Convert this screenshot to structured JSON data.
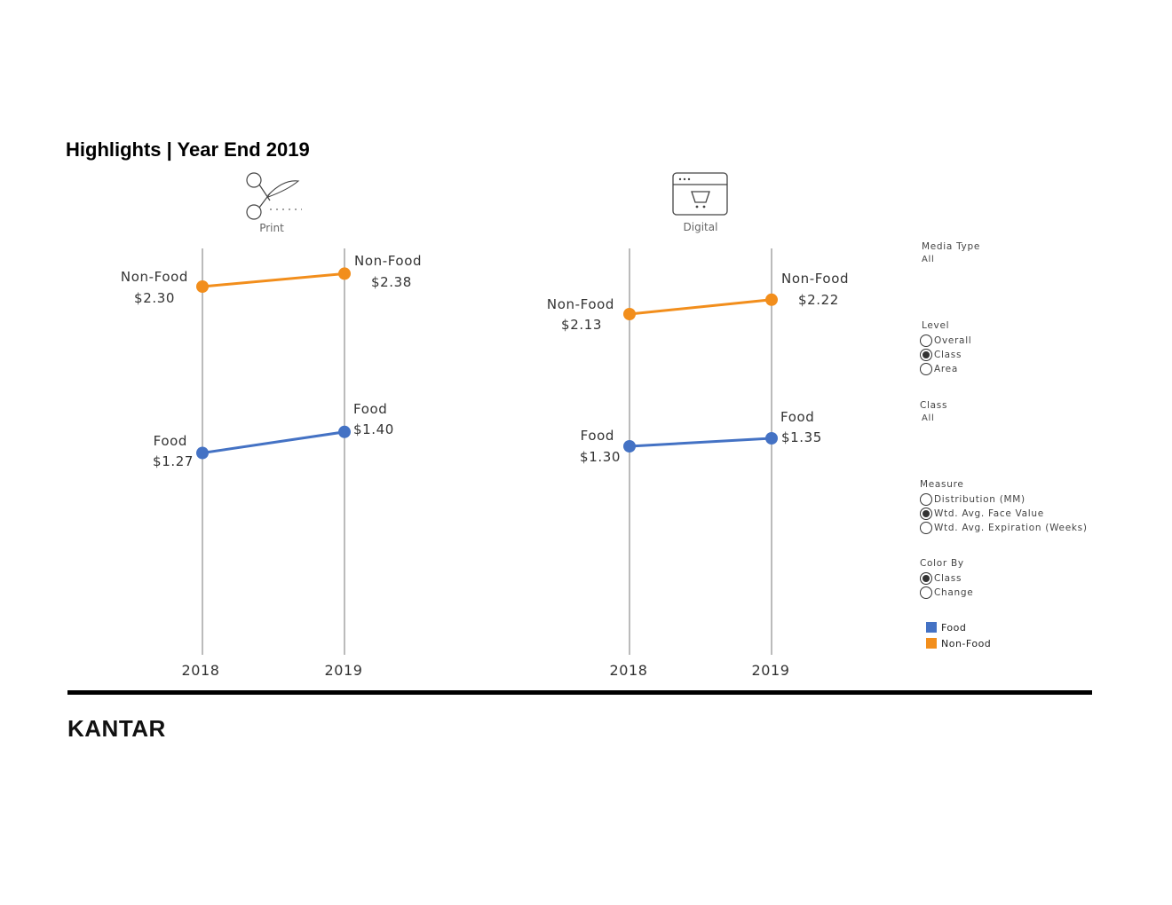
{
  "header": {
    "title": "Highlights | Year End 2019"
  },
  "media": {
    "print": {
      "label": "Print",
      "icon": "scissors-coupon-icon"
    },
    "digital": {
      "label": "Digital",
      "icon": "browser-cart-icon"
    }
  },
  "colors": {
    "food": "#4472C4",
    "non_food": "#F28E1C",
    "axis": "#bbbbbb"
  },
  "chart_data": [
    {
      "type": "line",
      "x": [
        "2018",
        "2019"
      ],
      "series": [
        {
          "name": "Non-Food",
          "values": [
            2.3,
            2.38
          ],
          "labels": [
            "$2.30",
            "$2.38"
          ]
        },
        {
          "name": "Food",
          "values": [
            1.27,
            1.4
          ],
          "labels": [
            "$1.27",
            "$1.40"
          ]
        }
      ]
    },
    {
      "type": "line",
      "x": [
        "2018",
        "2019"
      ],
      "series": [
        {
          "name": "Non-Food",
          "values": [
            2.13,
            2.22
          ],
          "labels": [
            "$2.13",
            "$2.22"
          ]
        },
        {
          "name": "Food",
          "values": [
            1.3,
            1.35
          ],
          "labels": [
            "$1.30",
            "$1.35"
          ]
        }
      ]
    }
  ],
  "filters": {
    "media_type": {
      "title": "Media Type",
      "value": "All"
    },
    "level": {
      "title": "Level",
      "options": [
        {
          "label": "Overall",
          "selected": false
        },
        {
          "label": "Class",
          "selected": true
        },
        {
          "label": "Area",
          "selected": false
        }
      ]
    },
    "class": {
      "title": "Class",
      "value": "All"
    },
    "measure": {
      "title": "Measure",
      "options": [
        {
          "label": "Distribution (MM)",
          "selected": false
        },
        {
          "label": "Wtd. Avg. Face Value",
          "selected": true
        },
        {
          "label": "Wtd. Avg. Expiration (Weeks)",
          "selected": false
        }
      ]
    },
    "color_by": {
      "title": "Color By",
      "options": [
        {
          "label": "Class",
          "selected": true
        },
        {
          "label": "Change",
          "selected": false
        }
      ]
    }
  },
  "legend": [
    {
      "label": "Food",
      "color": "#4472C4"
    },
    {
      "label": "Non-Food",
      "color": "#F28E1C"
    }
  ],
  "footer": {
    "logo": "KANTAR"
  }
}
